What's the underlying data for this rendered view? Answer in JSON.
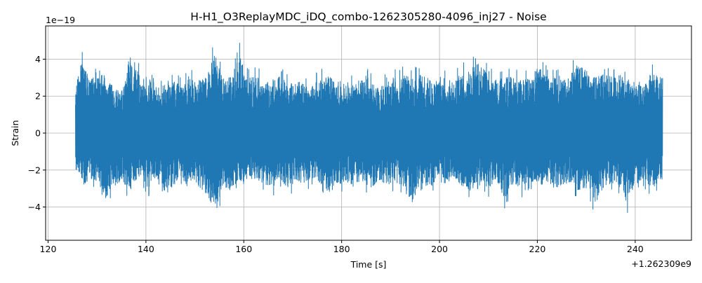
{
  "chart_data": {
    "type": "line",
    "title": "H-H1_O3ReplayMDC_iDQ_combo-1262305280-4096_inj27 - Noise",
    "xlabel": "Time [s]",
    "ylabel": "Strain",
    "x_offset_label": "+1.262309e9",
    "y_scale_label": "1e−19",
    "xlim": [
      119.5,
      251.5
    ],
    "ylim": [
      -5.8,
      5.8
    ],
    "x_ticks": [
      120,
      140,
      160,
      180,
      200,
      220,
      240
    ],
    "x_tick_labels": [
      "120",
      "140",
      "160",
      "180",
      "200",
      "220",
      "240"
    ],
    "y_ticks": [
      -4,
      -2,
      0,
      2,
      4
    ],
    "y_tick_labels": [
      "−4",
      "−2",
      "0",
      "2",
      "4"
    ],
    "grid": true,
    "series": [
      {
        "color": "#1f77b4",
        "x_range": [
          125.6,
          245.6
        ],
        "envelope_upper": [
          [
            125.6,
            3.1
          ],
          [
            126.8,
            4.5
          ],
          [
            128.3,
            3.7
          ],
          [
            130.1,
            3.5
          ],
          [
            131.5,
            3.8
          ],
          [
            132.6,
            3.5
          ],
          [
            134.3,
            2.7
          ],
          [
            135.5,
            3.1
          ],
          [
            136.6,
            4.9
          ],
          [
            138.0,
            4.4
          ],
          [
            139.6,
            2.9
          ],
          [
            141.4,
            3.9
          ],
          [
            143.0,
            2.8
          ],
          [
            144.3,
            3.5
          ],
          [
            145.9,
            3.3
          ],
          [
            147.3,
            3.1
          ],
          [
            148.9,
            3.8
          ],
          [
            150.3,
            3.3
          ],
          [
            152.4,
            3.6
          ],
          [
            154.3,
            5.4
          ],
          [
            155.8,
            3.1
          ],
          [
            157.9,
            3.9
          ],
          [
            159.1,
            5.0
          ],
          [
            160.8,
            3.5
          ],
          [
            162.9,
            3.6
          ],
          [
            164.2,
            3.1
          ],
          [
            166.4,
            3.6
          ],
          [
            168.0,
            3.6
          ],
          [
            170.2,
            3.1
          ],
          [
            171.5,
            3.6
          ],
          [
            173.3,
            2.8
          ],
          [
            175.4,
            3.5
          ],
          [
            177.2,
            3.7
          ],
          [
            179.4,
            3.3
          ],
          [
            181.3,
            3.3
          ],
          [
            183.2,
            3.3
          ],
          [
            185.1,
            3.7
          ],
          [
            187.0,
            2.9
          ],
          [
            189.6,
            3.3
          ],
          [
            190.8,
            3.6
          ],
          [
            192.7,
            3.7
          ],
          [
            194.6,
            3.5
          ],
          [
            196.1,
            3.8
          ],
          [
            198.6,
            3.3
          ],
          [
            200.4,
            3.6
          ],
          [
            202.6,
            3.3
          ],
          [
            204.5,
            3.8
          ],
          [
            206.1,
            4.1
          ],
          [
            208.1,
            4.5
          ],
          [
            210.4,
            3.5
          ],
          [
            212.6,
            3.5
          ],
          [
            214.6,
            3.6
          ],
          [
            216.6,
            3.4
          ],
          [
            218.6,
            3.5
          ],
          [
            220.4,
            4.4
          ],
          [
            222.3,
            3.5
          ],
          [
            224.1,
            3.7
          ],
          [
            226.0,
            3.4
          ],
          [
            228.1,
            4.3
          ],
          [
            229.9,
            4.1
          ],
          [
            231.4,
            3.5
          ],
          [
            232.9,
            3.8
          ],
          [
            234.9,
            3.6
          ],
          [
            236.8,
            3.7
          ],
          [
            238.1,
            3.5
          ],
          [
            240.1,
            3.3
          ],
          [
            241.6,
            3.2
          ],
          [
            243.5,
            3.9
          ],
          [
            245.6,
            3.6
          ]
        ],
        "envelope_lower": [
          [
            125.6,
            -2.3
          ],
          [
            127.2,
            -3.4
          ],
          [
            128.6,
            -3.0
          ],
          [
            130.3,
            -3.1
          ],
          [
            131.4,
            -4.4
          ],
          [
            133.3,
            -3.5
          ],
          [
            135.2,
            -3.1
          ],
          [
            136.8,
            -3.7
          ],
          [
            138.6,
            -2.8
          ],
          [
            140.5,
            -3.5
          ],
          [
            142.3,
            -3.1
          ],
          [
            143.8,
            -4.0
          ],
          [
            145.4,
            -3.5
          ],
          [
            146.9,
            -2.8
          ],
          [
            148.5,
            -3.5
          ],
          [
            150.2,
            -3.2
          ],
          [
            151.8,
            -3.9
          ],
          [
            153.1,
            -4.4
          ],
          [
            154.2,
            -5.3
          ],
          [
            155.6,
            -3.5
          ],
          [
            157.2,
            -3.9
          ],
          [
            158.8,
            -3.0
          ],
          [
            160.3,
            -3.4
          ],
          [
            162.2,
            -2.9
          ],
          [
            164.0,
            -3.2
          ],
          [
            165.6,
            -3.5
          ],
          [
            167.4,
            -3.0
          ],
          [
            169.0,
            -3.5
          ],
          [
            170.7,
            -3.1
          ],
          [
            172.4,
            -3.2
          ],
          [
            174.1,
            -2.9
          ],
          [
            175.8,
            -3.3
          ],
          [
            177.5,
            -3.8
          ],
          [
            179.2,
            -3.3
          ],
          [
            181.0,
            -3.1
          ],
          [
            182.7,
            -3.5
          ],
          [
            184.4,
            -3.2
          ],
          [
            186.1,
            -3.5
          ],
          [
            187.7,
            -3.0
          ],
          [
            189.4,
            -3.4
          ],
          [
            191.1,
            -3.1
          ],
          [
            192.8,
            -3.7
          ],
          [
            194.5,
            -4.4
          ],
          [
            196.2,
            -3.2
          ],
          [
            197.9,
            -3.5
          ],
          [
            199.6,
            -3.0
          ],
          [
            201.3,
            -3.3
          ],
          [
            203.0,
            -3.1
          ],
          [
            204.7,
            -3.5
          ],
          [
            206.4,
            -3.7
          ],
          [
            208.1,
            -3.0
          ],
          [
            209.8,
            -3.5
          ],
          [
            211.5,
            -3.2
          ],
          [
            213.4,
            -4.2
          ],
          [
            215.1,
            -3.3
          ],
          [
            216.8,
            -3.5
          ],
          [
            218.5,
            -3.0
          ],
          [
            220.2,
            -3.4
          ],
          [
            221.9,
            -3.2
          ],
          [
            223.6,
            -3.5
          ],
          [
            225.3,
            -3.3
          ],
          [
            227.0,
            -3.1
          ],
          [
            228.7,
            -3.8
          ],
          [
            230.4,
            -3.5
          ],
          [
            231.8,
            -4.6
          ],
          [
            233.4,
            -3.5
          ],
          [
            235.0,
            -3.2
          ],
          [
            236.8,
            -3.5
          ],
          [
            238.2,
            -4.6
          ],
          [
            239.9,
            -3.3
          ],
          [
            241.7,
            -3.0
          ],
          [
            243.5,
            -3.5
          ],
          [
            245.6,
            -2.9
          ]
        ]
      }
    ]
  }
}
